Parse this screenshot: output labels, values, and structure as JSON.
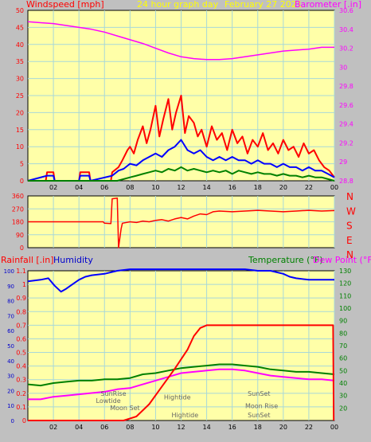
{
  "header": {
    "left": "Windspeed [mph]",
    "center": "24 hour graph day",
    "date": "February 27 2021",
    "right": "Barometer [.in]"
  },
  "colors": {
    "bg": "#c0c0c0",
    "plot": "#ffffa8",
    "grid": "#a8d8d8",
    "wind_max": "#ff0000",
    "wind_avg": "#0000ff",
    "wind_min": "#008000",
    "baro": "#ff00ff",
    "dir": "#ff0000",
    "humidity": "#0000ff",
    "temperature": "#008000",
    "dewpoint": "#ff00ff",
    "rain": "#ff0000",
    "label_red": "#ff0000",
    "label_blue": "#0000cc",
    "label_green": "#008000",
    "label_mag": "#ff00ff"
  },
  "chart_data": [
    {
      "type": "line",
      "id": "wind-barometer",
      "x_unit": "hour",
      "xlim": [
        0,
        24
      ],
      "x_ticks": [
        "02",
        "04",
        "06",
        "08",
        "10",
        "12",
        "14",
        "16",
        "18",
        "20",
        "22",
        "00"
      ],
      "y_left": {
        "label": "Windspeed [mph]",
        "ylim": [
          0,
          50
        ],
        "ticks": [
          "50",
          "45",
          "40",
          "35",
          "30",
          "25",
          "20",
          "15",
          "10",
          "5",
          "0"
        ]
      },
      "y_right": {
        "label": "Barometer [.in]",
        "ylim": [
          28.8,
          30.6
        ],
        "ticks": [
          "30.6",
          "30.4",
          "30.2",
          "30",
          "29.8",
          "29.6",
          "29.4",
          "29.2",
          "29",
          "28.8"
        ]
      },
      "series": [
        {
          "name": "Windspeed",
          "key": "wind_max",
          "axis": "left",
          "x": [
            0,
            1.4,
            1.5,
            2.0,
            2.1,
            4.0,
            4.1,
            4.8,
            4.9,
            6.5,
            6.6,
            7.1,
            7.4,
            7.8,
            8.0,
            8.3,
            8.6,
            9.0,
            9.3,
            9.6,
            10.0,
            10.3,
            10.6,
            11.0,
            11.3,
            11.6,
            12.0,
            12.3,
            12.6,
            13.0,
            13.3,
            13.6,
            14.0,
            14.4,
            14.8,
            15.2,
            15.6,
            16.0,
            16.4,
            16.8,
            17.2,
            17.6,
            18.0,
            18.4,
            18.8,
            19.2,
            19.6,
            20.0,
            20.4,
            20.8,
            21.2,
            21.6,
            22.0,
            22.4,
            22.8,
            23.2,
            23.6,
            24.0
          ],
          "y": [
            0,
            0,
            2.5,
            2.5,
            0,
            0,
            2.5,
            2.5,
            0,
            0,
            2.5,
            4,
            6,
            9,
            10,
            8,
            12,
            16,
            11,
            15,
            22,
            13,
            18,
            24,
            15,
            20,
            25,
            14,
            19,
            17,
            13,
            15,
            10,
            16,
            12,
            14,
            9,
            15,
            11,
            13,
            8,
            12,
            10,
            14,
            9,
            11,
            8,
            12,
            9,
            10,
            7,
            11,
            8,
            9,
            6,
            4,
            3,
            1
          ]
        },
        {
          "name": "Average",
          "key": "wind_avg",
          "axis": "left",
          "x": [
            0,
            1.5,
            2.0,
            2.1,
            4.0,
            4.1,
            4.8,
            4.9,
            6.6,
            7.1,
            7.5,
            8.0,
            8.5,
            9.0,
            9.5,
            10.0,
            10.5,
            11.0,
            11.5,
            12.0,
            12.5,
            13.0,
            13.5,
            14.0,
            14.5,
            15.0,
            15.5,
            16.0,
            16.5,
            17.0,
            17.5,
            18.0,
            18.5,
            19.0,
            19.5,
            20.0,
            20.5,
            21.0,
            21.5,
            22.0,
            22.5,
            23.0,
            23.5,
            24.0
          ],
          "y": [
            0,
            1.5,
            1.5,
            0,
            0,
            1.5,
            1.5,
            0,
            1.5,
            3,
            3.5,
            5,
            4.5,
            6,
            7,
            8,
            7,
            9,
            10,
            12,
            9,
            8,
            9,
            7,
            6,
            7,
            6,
            7,
            6,
            6,
            5,
            6,
            5,
            5,
            4,
            5,
            4,
            4,
            3,
            4,
            3,
            3,
            2,
            1
          ]
        },
        {
          "name": "Gust",
          "key": "wind_min",
          "axis": "left",
          "x": [
            0,
            7.0,
            7.5,
            8.0,
            8.5,
            9.0,
            9.5,
            10.0,
            10.5,
            11.0,
            11.5,
            12.0,
            12.5,
            13.0,
            13.5,
            14.0,
            14.5,
            15.0,
            15.5,
            16.0,
            16.5,
            17.0,
            17.5,
            18.0,
            18.5,
            19.0,
            19.5,
            20.0,
            20.5,
            21.0,
            21.5,
            22.0,
            22.5,
            23.0,
            23.5,
            24.0
          ],
          "y": [
            0,
            0,
            0.5,
            1,
            1.5,
            2,
            2.5,
            3,
            2.5,
            3.5,
            3,
            4,
            3,
            3.5,
            3,
            2.5,
            3,
            2.5,
            3,
            2,
            3,
            2.5,
            2,
            2.5,
            2,
            2,
            1.5,
            2,
            1.5,
            1.5,
            1,
            1.5,
            1,
            1,
            0.5,
            0
          ]
        },
        {
          "name": "Barometer",
          "key": "baro",
          "axis": "right",
          "x": [
            0,
            1,
            2,
            3,
            4,
            5,
            6,
            7,
            8,
            9,
            10,
            11,
            12,
            13,
            14,
            15,
            16,
            17,
            18,
            19,
            20,
            21,
            22,
            23,
            24
          ],
          "y": [
            30.48,
            30.47,
            30.46,
            30.44,
            30.42,
            30.4,
            30.37,
            30.33,
            30.29,
            30.25,
            30.2,
            30.15,
            30.11,
            30.09,
            30.08,
            30.08,
            30.09,
            30.11,
            30.13,
            30.15,
            30.17,
            30.18,
            30.19,
            30.21,
            30.21
          ]
        }
      ]
    },
    {
      "type": "line",
      "id": "wind-direction",
      "x_unit": "hour",
      "xlim": [
        0,
        24
      ],
      "y_left": {
        "ylim": [
          0,
          360
        ],
        "ticks": [
          "360",
          "270",
          "180",
          "90",
          "0"
        ]
      },
      "y_right": {
        "ticks": [
          "N",
          "W",
          "S",
          "E",
          "N"
        ]
      },
      "series": [
        {
          "name": "Direction",
          "key": "dir",
          "axis": "left",
          "x": [
            0,
            3.9,
            4.0,
            5.9,
            6.0,
            6.5,
            6.6,
            7.0,
            7.1,
            7.3,
            7.4,
            8.0,
            8.5,
            9.0,
            9.5,
            10.0,
            10.5,
            11.0,
            11.5,
            12.0,
            12.5,
            13.0,
            13.5,
            14.0,
            14.5,
            15.0,
            16.0,
            17.0,
            18.0,
            19.0,
            20.0,
            21.0,
            22.0,
            23.0,
            24.0
          ],
          "y": [
            180,
            180,
            180,
            180,
            170,
            168,
            340,
            345,
            0,
            130,
            170,
            180,
            175,
            185,
            180,
            190,
            195,
            185,
            200,
            210,
            200,
            220,
            235,
            230,
            250,
            255,
            250,
            255,
            260,
            255,
            250,
            255,
            260,
            255,
            258
          ]
        }
      ]
    },
    {
      "type": "line",
      "id": "temp-hum-rain",
      "x_unit": "hour",
      "xlim": [
        0,
        24
      ],
      "y_left_rain": {
        "label": "Rainfall [.in]",
        "ylim": [
          0,
          1.1
        ],
        "ticks": [
          "1.1",
          "1",
          "0.9",
          "0.8",
          "0.7",
          "0.6",
          "0.5",
          "0.4",
          "0.3",
          "0.2",
          "0.1",
          "0"
        ]
      },
      "y_left_hum": {
        "label": "Humidity",
        "ylim": [
          0,
          100
        ],
        "ticks": [
          "100",
          "90",
          "80",
          "70",
          "60",
          "50",
          "40",
          "30",
          "20",
          "10",
          "0"
        ]
      },
      "y_right": {
        "label": "Temperature (°F)",
        "ylim": [
          10,
          130
        ],
        "ticks": [
          "130",
          "120",
          "110",
          "100",
          "90",
          "80",
          "70",
          "60",
          "50",
          "40",
          "30",
          "20"
        ]
      },
      "dew_label": "Dew Point (°F)",
      "series": [
        {
          "name": "Humidity",
          "key": "humidity",
          "axis": "hum",
          "x": [
            0,
            1,
            1.6,
            2.1,
            2.6,
            3.0,
            3.5,
            4.0,
            4.5,
            5.0,
            6.0,
            7.0,
            8.0,
            10.0,
            12.0,
            14.0,
            16.0,
            17.0,
            18.0,
            19.0,
            20.0,
            20.5,
            21.0,
            22.0,
            23.0,
            24.0
          ],
          "y": [
            93,
            94,
            95,
            90,
            86,
            88,
            91,
            94,
            96,
            97,
            98,
            100,
            101,
            101,
            101,
            101,
            101,
            101,
            100,
            100,
            98,
            96,
            95,
            94,
            94,
            94
          ]
        },
        {
          "name": "Temperature",
          "key": "temperature",
          "axis": "temp",
          "x": [
            0,
            1,
            2,
            3,
            4,
            5,
            6,
            7,
            8,
            9,
            10,
            11,
            12,
            13,
            14,
            15,
            16,
            17,
            18,
            19,
            20,
            21,
            22,
            23,
            24
          ],
          "y": [
            39,
            38,
            40,
            41,
            42,
            42,
            43,
            43,
            44,
            47,
            48,
            50,
            52,
            53,
            54,
            55,
            55,
            54,
            53,
            51,
            50,
            49,
            49,
            48,
            47
          ]
        },
        {
          "name": "Dew Point",
          "key": "dewpoint",
          "axis": "temp",
          "x": [
            0,
            1,
            2,
            3,
            4,
            5,
            6,
            7,
            8,
            9,
            10,
            11,
            12,
            13,
            14,
            15,
            16,
            17,
            18,
            19,
            20,
            21,
            22,
            23,
            24
          ],
          "y": [
            27,
            27,
            29,
            30,
            31,
            32,
            33,
            35,
            36,
            39,
            42,
            45,
            48,
            49,
            50,
            51,
            51,
            50,
            48,
            46,
            45,
            44,
            43,
            43,
            42
          ]
        },
        {
          "name": "Rainfall",
          "key": "rain",
          "axis": "rain",
          "x": [
            0,
            7.5,
            8.5,
            9.5,
            10.5,
            11.5,
            12.5,
            13.0,
            13.5,
            14.0,
            23.9,
            23.95
          ],
          "y": [
            0,
            0,
            0.03,
            0.12,
            0.25,
            0.38,
            0.52,
            0.62,
            0.68,
            0.7,
            0.7,
            0
          ]
        }
      ],
      "annotations": [
        {
          "text": "SunRise",
          "hour": 6.7,
          "row": 1
        },
        {
          "text": "Lowtide",
          "hour": 6.3,
          "row": 2
        },
        {
          "text": "Moon Set",
          "hour": 7.6,
          "row": 3
        },
        {
          "text": "Hightide",
          "hour": 11.7,
          "row": 1.5
        },
        {
          "text": "Hightide",
          "hour": 12.3,
          "row": 4
        },
        {
          "text": "SunSet",
          "hour": 18.1,
          "row": 1
        },
        {
          "text": "Moon Rise",
          "hour": 18.3,
          "row": 2.7
        },
        {
          "text": "SunSet",
          "hour": 18.1,
          "row": 4
        }
      ],
      "x_ticks": [
        "02",
        "04",
        "06",
        "08",
        "10",
        "12",
        "14",
        "16",
        "18",
        "20",
        "22",
        "00"
      ]
    }
  ],
  "labels": {
    "rainfall": "Rainfall [.in]",
    "humidity": "Humidity",
    "temperature": "Temperature (°F)",
    "dewpoint": "Dew Point (°F)"
  }
}
